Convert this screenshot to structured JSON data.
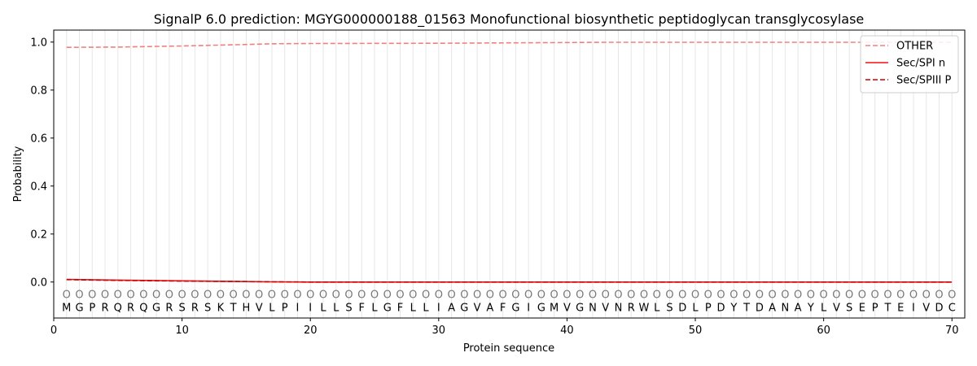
{
  "chart_data": {
    "type": "line",
    "title": "SignalP 6.0 prediction: MGYG000000188_01563 Monofunctional biosynthetic peptidoglycan transglycosylase",
    "xlabel": "Protein sequence",
    "ylabel": "Probability",
    "xlim": [
      0,
      71
    ],
    "ylim": [
      -0.15,
      1.05
    ],
    "xticks": [
      0,
      10,
      20,
      30,
      40,
      50,
      60,
      70
    ],
    "yticks": [
      0.0,
      0.2,
      0.4,
      0.6,
      0.8,
      1.0
    ],
    "xtick_labels": [
      "0",
      "10",
      "20",
      "30",
      "40",
      "50",
      "60",
      "70"
    ],
    "ytick_labels": [
      "0.0",
      "0.2",
      "0.4",
      "0.6",
      "0.8",
      "1.0"
    ],
    "sequence": [
      "M",
      "G",
      "P",
      "R",
      "Q",
      "R",
      "Q",
      "G",
      "R",
      "S",
      "R",
      "S",
      "K",
      "T",
      "H",
      "V",
      "L",
      "P",
      "I",
      "I",
      "L",
      "L",
      "S",
      "F",
      "L",
      "G",
      "F",
      "L",
      "L",
      "I",
      "A",
      "G",
      "V",
      "A",
      "F",
      "G",
      "I",
      "G",
      "M",
      "V",
      "G",
      "N",
      "V",
      "N",
      "R",
      "W",
      "L",
      "S",
      "D",
      "L",
      "P",
      "D",
      "Y",
      "T",
      "D",
      "A",
      "N",
      "A",
      "Y",
      "L",
      "V",
      "S",
      "E",
      "P",
      "T",
      "E",
      "I",
      "V",
      "D",
      "C"
    ],
    "state_labels": [
      "O",
      "O",
      "O",
      "O",
      "O",
      "O",
      "O",
      "O",
      "O",
      "O",
      "O",
      "O",
      "O",
      "O",
      "O",
      "O",
      "O",
      "O",
      "O",
      "O",
      "O",
      "O",
      "O",
      "O",
      "O",
      "O",
      "O",
      "O",
      "O",
      "O",
      "O",
      "O",
      "O",
      "O",
      "O",
      "O",
      "O",
      "O",
      "O",
      "O",
      "O",
      "O",
      "O",
      "O",
      "O",
      "O",
      "O",
      "O",
      "O",
      "O",
      "O",
      "O",
      "O",
      "O",
      "O",
      "O",
      "O",
      "O",
      "O",
      "O",
      "O",
      "O",
      "O",
      "O",
      "O",
      "O",
      "O",
      "O",
      "O",
      "O"
    ],
    "legend_position": "top-right",
    "grid": "vertical lines at each residue",
    "series": [
      {
        "name": "OTHER",
        "color": "#f08080",
        "style": "dashed",
        "x": [
          1,
          5,
          10,
          15,
          17,
          20,
          30,
          40,
          43,
          50,
          60,
          70
        ],
        "values": [
          0.978,
          0.979,
          0.984,
          0.99,
          0.993,
          0.994,
          0.995,
          0.998,
          0.999,
          0.999,
          0.999,
          0.999
        ]
      },
      {
        "name": "Sec/SPI n",
        "color": "#ee1111",
        "style": "solid",
        "x": [
          1,
          5,
          10,
          15,
          17,
          20,
          30,
          40,
          50,
          60,
          70
        ],
        "values": [
          0.011,
          0.008,
          0.005,
          0.002,
          0.001,
          0.0,
          0.0,
          0.0,
          0.0,
          0.0,
          0.0
        ]
      },
      {
        "name": "Sec/SPIII P",
        "color": "#cc0000",
        "style": "dashed",
        "x": [
          1,
          5,
          10,
          15,
          17,
          20,
          30,
          40,
          50,
          60,
          70
        ],
        "values": [
          0.01,
          0.007,
          0.004,
          0.002,
          0.001,
          0.0,
          0.0,
          0.0,
          0.0,
          0.0,
          0.0
        ]
      }
    ]
  }
}
